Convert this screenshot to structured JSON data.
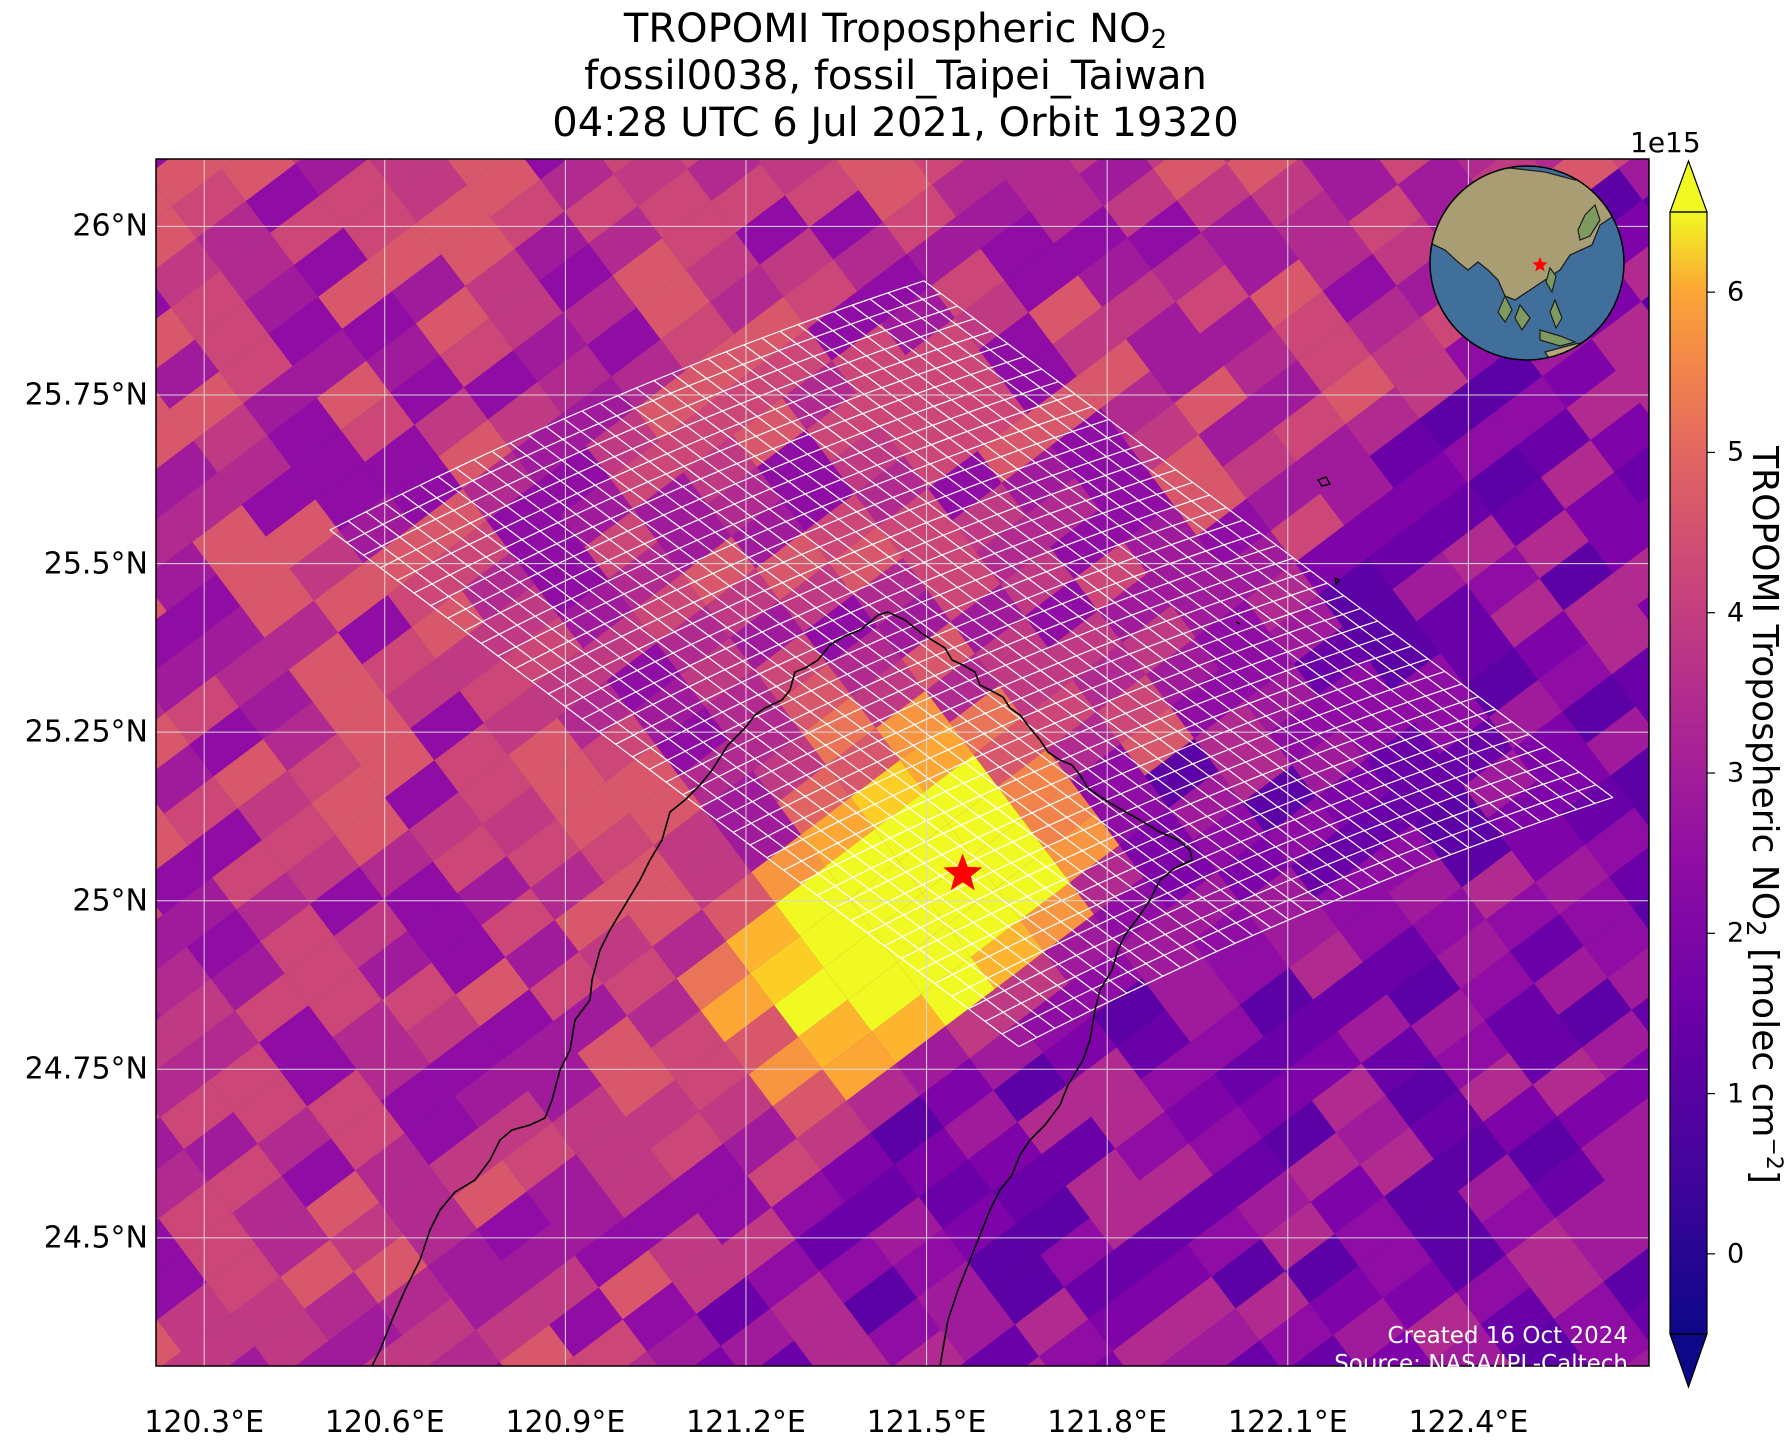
{
  "title": {
    "line1_prefix": "TROPOMI Tropospheric NO",
    "line1_sub": "2",
    "line2": "fossil0038, fossil_Taipei_Taiwan",
    "line3": "04:28 UTC 6 Jul 2021, Orbit 19320"
  },
  "map": {
    "lon_range": [
      120.22,
      122.7
    ],
    "lat_range": [
      24.31,
      26.1
    ],
    "lat_ticks": [
      "26°N",
      "25.75°N",
      "25.5°N",
      "25.25°N",
      "25°N",
      "24.75°N",
      "24.5°N"
    ],
    "lon_ticks": [
      "120.3°E",
      "120.6°E",
      "120.9°E",
      "121.2°E",
      "121.5°E",
      "121.8°E",
      "122.1°E",
      "122.4°E"
    ],
    "lat_values": [
      26.0,
      25.75,
      25.5,
      25.25,
      25.0,
      24.75,
      24.5
    ],
    "lon_values": [
      120.3,
      120.6,
      120.9,
      121.2,
      121.5,
      121.8,
      122.1,
      122.4
    ],
    "site_marker": {
      "lon": 121.56,
      "lat": 25.04,
      "symbol": "star",
      "color": "#ff0000"
    },
    "gridlines": true
  },
  "colorbar": {
    "colormap": "plasma",
    "range": [
      -0.5,
      6.5
    ],
    "exponent": "1e15",
    "ticks": [
      "0",
      "1",
      "2",
      "3",
      "4",
      "5",
      "6"
    ],
    "tick_values": [
      0,
      1,
      2,
      3,
      4,
      5,
      6
    ],
    "label_prefix": "TROPOMI Tropospheric NO",
    "label_sub": "2",
    "label_mid": " [molec cm",
    "label_sup": "−2",
    "label_suffix": "]",
    "extend": "both"
  },
  "credits": {
    "line1": "Created 16 Oct 2024",
    "line2": "Source: NASA/JPL-Caltech"
  },
  "colors": {
    "grid": "#d8d8d8",
    "coastline": "#000000",
    "target_grid": "#ffffff",
    "marker": "#ff0000"
  }
}
